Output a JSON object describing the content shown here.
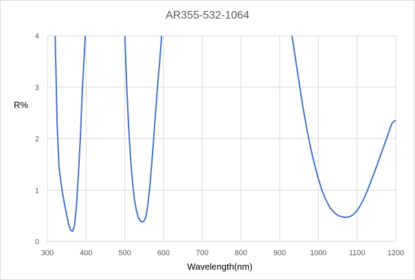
{
  "chart_data": {
    "type": "line",
    "title": "AR355-532-1064",
    "xlabel": "Wavelength(nm)",
    "ylabel": "R%",
    "xlim": [
      300,
      1200
    ],
    "ylim": [
      0,
      4
    ],
    "x_ticks": [
      300,
      400,
      500,
      600,
      700,
      800,
      900,
      1000,
      1100,
      1200
    ],
    "y_ticks": [
      0,
      1,
      2,
      3,
      4
    ],
    "grid": true,
    "legend": "none",
    "colors": {
      "line": "#4472c4",
      "grid": "#d9d9d9",
      "text": "#595959"
    },
    "series": [
      {
        "segments": [
          [
            [
              320,
              4.0
            ],
            [
              325,
              2.3
            ],
            [
              330,
              1.45
            ],
            [
              335,
              1.15
            ],
            [
              340,
              0.9
            ],
            [
              345,
              0.7
            ],
            [
              350,
              0.5
            ],
            [
              355,
              0.33
            ],
            [
              360,
              0.22
            ],
            [
              365,
              0.2
            ],
            [
              370,
              0.3
            ],
            [
              375,
              0.7
            ],
            [
              380,
              1.3
            ],
            [
              385,
              2.0
            ],
            [
              390,
              2.9
            ],
            [
              395,
              3.6
            ],
            [
              398,
              4.0
            ]
          ],
          [
            [
              500,
              4.0
            ],
            [
              505,
              3.0
            ],
            [
              510,
              2.2
            ],
            [
              515,
              1.6
            ],
            [
              520,
              1.15
            ],
            [
              525,
              0.8
            ],
            [
              530,
              0.6
            ],
            [
              535,
              0.47
            ],
            [
              540,
              0.4
            ],
            [
              545,
              0.38
            ],
            [
              550,
              0.4
            ],
            [
              555,
              0.5
            ],
            [
              560,
              0.75
            ],
            [
              565,
              1.1
            ],
            [
              570,
              1.55
            ],
            [
              575,
              2.05
            ],
            [
              580,
              2.55
            ],
            [
              585,
              3.05
            ],
            [
              590,
              3.5
            ],
            [
              595,
              4.0
            ]
          ],
          [
            [
              932,
              4.0
            ],
            [
              940,
              3.6
            ],
            [
              950,
              3.1
            ],
            [
              960,
              2.62
            ],
            [
              970,
              2.2
            ],
            [
              980,
              1.82
            ],
            [
              990,
              1.5
            ],
            [
              1000,
              1.22
            ],
            [
              1010,
              0.98
            ],
            [
              1020,
              0.8
            ],
            [
              1030,
              0.66
            ],
            [
              1040,
              0.57
            ],
            [
              1050,
              0.51
            ],
            [
              1060,
              0.48
            ],
            [
              1070,
              0.47
            ],
            [
              1080,
              0.48
            ],
            [
              1090,
              0.52
            ],
            [
              1100,
              0.6
            ],
            [
              1110,
              0.72
            ],
            [
              1120,
              0.87
            ],
            [
              1130,
              1.05
            ],
            [
              1140,
              1.25
            ],
            [
              1150,
              1.45
            ],
            [
              1160,
              1.66
            ],
            [
              1170,
              1.87
            ],
            [
              1180,
              2.08
            ],
            [
              1190,
              2.3
            ],
            [
              1200,
              2.36
            ]
          ]
        ]
      }
    ]
  }
}
